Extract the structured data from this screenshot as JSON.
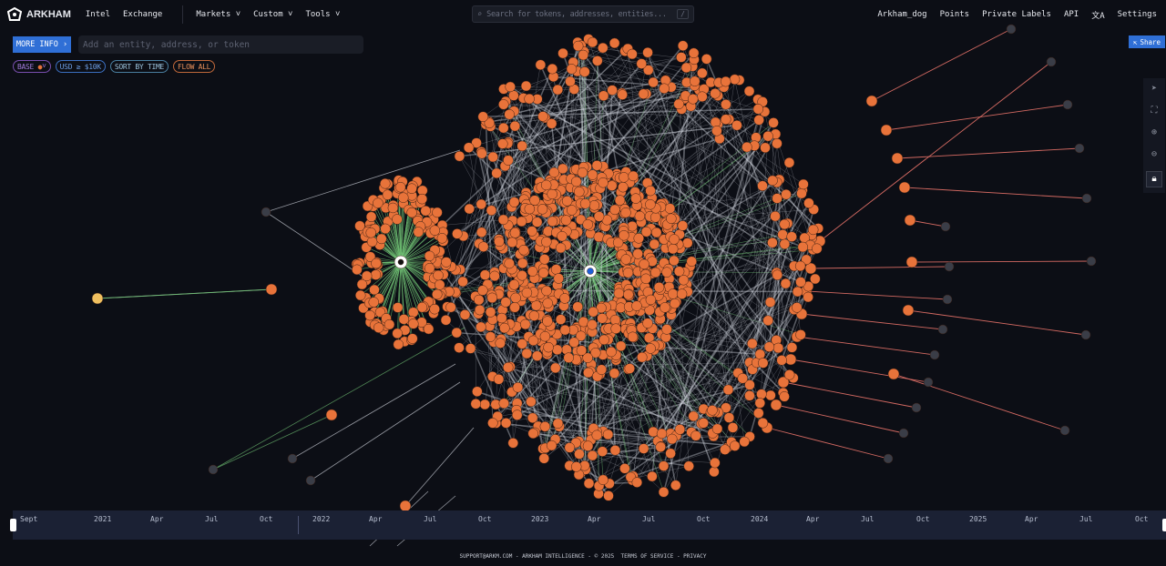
{
  "header": {
    "brand": "ARKHAM",
    "nav": [
      "Intel",
      "Exchange"
    ],
    "dropdowns": [
      "Markets",
      "Custom",
      "Tools"
    ],
    "search_placeholder": "Search for tokens, addresses, entities...",
    "search_shortcut": "/",
    "right": [
      "Arkham_dog",
      "Points",
      "Private Labels",
      "API",
      "Settings"
    ]
  },
  "toolbar": {
    "more_info": "MORE INFO",
    "entity_placeholder": "Add an entity, address, or token",
    "filters": [
      "BASE",
      "USD ≥ $10K",
      "SORT BY TIME",
      "FLOW ALL"
    ],
    "share": "Share"
  },
  "colors": {
    "node": "#e8733a",
    "accent": "#2f6fd6",
    "inflow": "#6fbf73",
    "outflow": "#e8736a",
    "edge": "#cfd3dc"
  },
  "timeline": {
    "labels": [
      "Sept",
      "2021",
      "Apr",
      "Jul",
      "Oct",
      "2022",
      "Apr",
      "Jul",
      "Oct",
      "2023",
      "Apr",
      "Jul",
      "Oct",
      "2024",
      "Apr",
      "Jul",
      "Oct",
      "2025",
      "Apr",
      "Jul",
      "Oct"
    ]
  },
  "footer": {
    "text": "SUPPORT@ARKM.COM - ARKHAM INTELLIGENCE - © 2025",
    "terms": "TERMS OF SERVICE",
    "privacy": "PRIVACY"
  }
}
